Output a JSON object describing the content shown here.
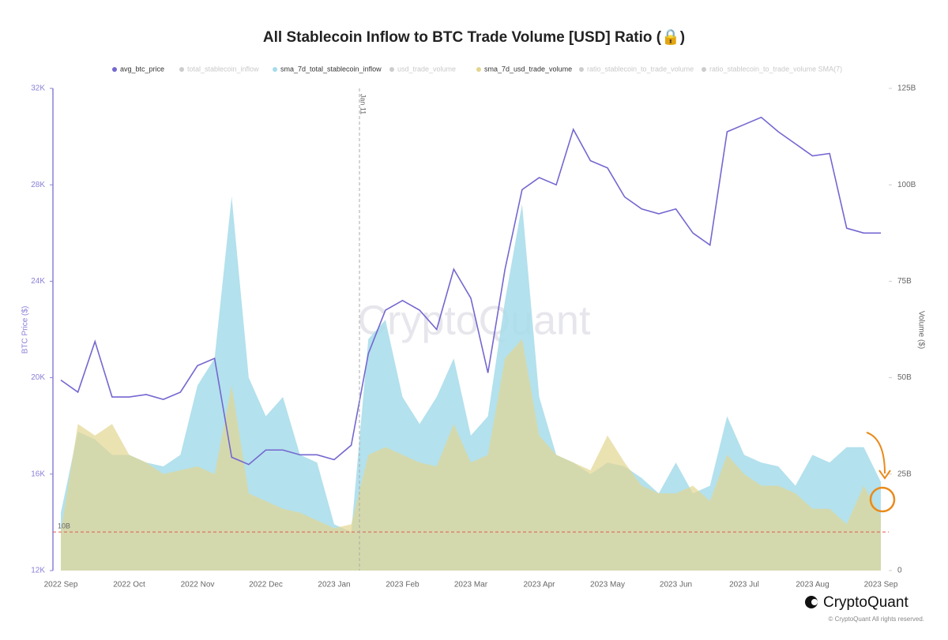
{
  "chart_data": {
    "type": "line",
    "title": "All Stablecoin Inflow to BTC Trade Volume [USD] Ratio (🔒)",
    "ylabel": "BTC Price ($)",
    "y2label": "Volume ($)",
    "annotation": "Jan 11",
    "watermark": "CryptoQuant",
    "brand": "CryptoQuant",
    "copyright": "© CryptoQuant All rights reserved.",
    "categories": [
      "2022 Sep",
      null,
      null,
      null,
      "2022 Oct",
      null,
      null,
      null,
      "2022 Nov",
      null,
      null,
      null,
      "2022 Dec",
      null,
      null,
      null,
      "2023 Jan",
      null,
      null,
      null,
      "2023 Feb",
      null,
      null,
      null,
      "2023 Mar",
      null,
      null,
      null,
      "2023 Apr",
      null,
      null,
      null,
      "2023 May",
      null,
      null,
      null,
      "2023 Jun",
      null,
      null,
      null,
      "2023 Jul",
      null,
      null,
      null,
      "2023 Aug",
      null,
      null,
      null,
      "2023 Sep"
    ],
    "series": [
      {
        "name": "avg_btc_price",
        "type": "line",
        "color": "#7467d0",
        "values": [
          19900,
          19400,
          21500,
          19200,
          19200,
          19300,
          19100,
          19400,
          20500,
          20800,
          16700,
          16400,
          17000,
          17000,
          16800,
          16800,
          16600,
          17200,
          21000,
          22800,
          23200,
          22800,
          22000,
          24500,
          23300,
          20200,
          24500,
          27800,
          28300,
          28000,
          30300,
          29000,
          28700,
          27500,
          27000,
          26800,
          27000,
          26000,
          25500,
          30200,
          30500,
          30800,
          30200,
          29700,
          29200,
          29300,
          26200,
          26000,
          26000
        ]
      },
      {
        "name": "sma_7d_total_stablecoin_inflow",
        "type": "area",
        "axis": "y2",
        "color": "#a6dcea",
        "values": [
          15000000000.0,
          36000000000.0,
          34000000000.0,
          30000000000.0,
          30000000000.0,
          28000000000.0,
          27000000000.0,
          30000000000.0,
          48000000000.0,
          55000000000.0,
          97000000000.0,
          50000000000.0,
          40000000000.0,
          45000000000.0,
          30000000000.0,
          28000000000.0,
          12000000000.0,
          10000000000.0,
          60000000000.0,
          65000000000.0,
          45000000000.0,
          38000000000.0,
          45000000000.0,
          55000000000.0,
          35000000000.0,
          40000000000.0,
          70000000000.0,
          95000000000.0,
          45000000000.0,
          30000000000.0,
          28000000000.0,
          25000000000.0,
          28000000000.0,
          27000000000.0,
          24000000000.0,
          20000000000.0,
          28000000000.0,
          20000000000.0,
          22000000000.0,
          40000000000.0,
          30000000000.0,
          28000000000.0,
          27000000000.0,
          22000000000.0,
          30000000000.0,
          28000000000.0,
          32000000000.0,
          32000000000.0,
          23000000000.0
        ]
      },
      {
        "name": "sma_7d_usd_trade_volume",
        "type": "area",
        "axis": "y2",
        "color": "#e3d691",
        "values": [
          10000000000.0,
          38000000000.0,
          35000000000.0,
          38000000000.0,
          30000000000.0,
          28000000000.0,
          25000000000.0,
          26000000000.0,
          27000000000.0,
          25000000000.0,
          48000000000.0,
          20000000000.0,
          18000000000.0,
          16000000000.0,
          15000000000.0,
          13000000000.0,
          11000000000.0,
          12000000000.0,
          30000000000.0,
          32000000000.0,
          30000000000.0,
          28000000000.0,
          27000000000.0,
          38000000000.0,
          28000000000.0,
          30000000000.0,
          55000000000.0,
          60000000000.0,
          35000000000.0,
          30000000000.0,
          28000000000.0,
          26000000000.0,
          35000000000.0,
          28000000000.0,
          22000000000.0,
          20000000000.0,
          20000000000.0,
          22000000000.0,
          18000000000.0,
          30000000000.0,
          25000000000.0,
          22000000000.0,
          22000000000.0,
          20000000000.0,
          16000000000.0,
          16000000000.0,
          12000000000.0,
          22000000000.0,
          14000000000.0
        ]
      }
    ],
    "inactive_legend": [
      "total_stablecoin_inflow",
      "usd_trade_volume",
      "ratio_stablecoin_to_trade_volume",
      "ratio_stablecoin_to_trade_volume SMA(7)"
    ],
    "ylim": [
      12000,
      32000
    ],
    "yticks": [
      {
        "value": 12000,
        "label": "12K"
      },
      {
        "value": 16000,
        "label": "16K"
      },
      {
        "value": 20000,
        "label": "20K"
      },
      {
        "value": 24000,
        "label": "24K"
      },
      {
        "value": 28000,
        "label": "28K"
      },
      {
        "value": 32000,
        "label": "32K"
      }
    ],
    "y2lim": [
      0,
      125000000000.0
    ],
    "y2ticks": [
      0,
      {
        "value": 25000000000.0,
        "label": "25B"
      },
      {
        "value": 50000000000.0,
        "label": "50B"
      },
      {
        "value": 75000000000.0,
        "label": "75B"
      },
      {
        "value": 100000000000.0,
        "label": "100B"
      },
      {
        "value": 125000000000.0,
        "label": "125B"
      }
    ],
    "reference_line": {
      "value": 10000000000.0,
      "label": "10B",
      "axis": "y2",
      "color": "#e05a4e"
    },
    "grid": false
  }
}
